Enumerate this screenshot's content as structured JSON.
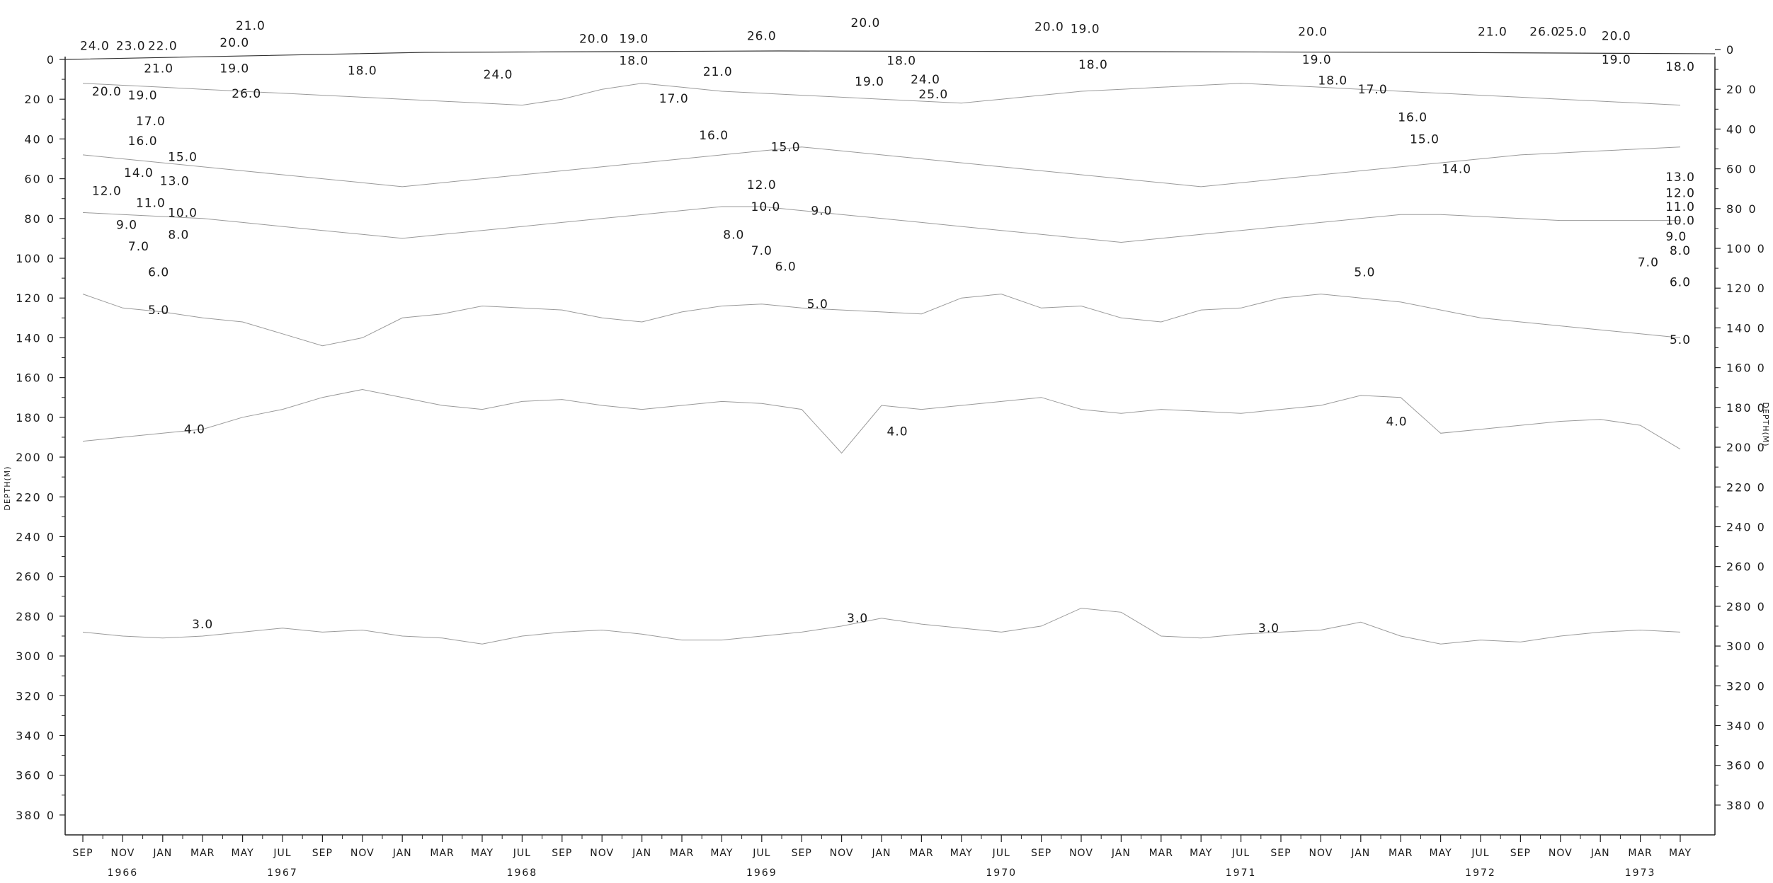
{
  "chart_data": {
    "type": "contour",
    "title": "",
    "ylabel": "DEPTH(M)",
    "xlabel": "",
    "x_range": [
      "1966-09",
      "1973-05"
    ],
    "ylim": [
      0,
      3900
    ],
    "y_reversed": true,
    "y_ticks": [
      0,
      200,
      400,
      600,
      800,
      1000,
      1200,
      1400,
      1600,
      1800,
      2000,
      2200,
      2400,
      2600,
      2800,
      3000,
      3200,
      3400,
      3600,
      3800
    ],
    "y_tick_labels": [
      "0",
      "20 0",
      "40 0",
      "60 0",
      "80 0",
      "100 0",
      "120 0",
      "140 0",
      "160 0",
      "180 0",
      "200 0",
      "220 0",
      "240 0",
      "260 0",
      "280 0",
      "300 0",
      "320 0",
      "340 0",
      "360 0",
      "380 0"
    ],
    "y_tick_labels_right": [
      "0",
      "20 0",
      "40 0",
      "60 0",
      "80 0",
      "100 0",
      "120 0",
      "140 0",
      "160 0",
      "180 0",
      "200 0",
      "220 0",
      "240 0",
      "260 0",
      "280 0",
      "300 0",
      "320 0",
      "340 0",
      "360 0",
      "380 0"
    ],
    "x_months": [
      "SEP",
      "NOV",
      "JAN",
      "MAR",
      "MAY",
      "JUL",
      "SEP",
      "NOV",
      "JAN",
      "MAR",
      "MAY",
      "JUL",
      "SEP",
      "NOV",
      "JAN",
      "MAR",
      "MAY",
      "JUL",
      "SEP",
      "NOV",
      "JAN",
      "MAR",
      "MAY",
      "JUL",
      "SEP",
      "NOV",
      "JAN",
      "MAR",
      "MAY",
      "JUL",
      "SEP",
      "NOV",
      "JAN",
      "MAR",
      "MAY",
      "JUL",
      "SEP",
      "NOV",
      "JAN",
      "MAR",
      "MAY"
    ],
    "year_labels": [
      {
        "text": "1966",
        "month_index": 1
      },
      {
        "text": "1967",
        "month_index": 5
      },
      {
        "text": "1968",
        "month_index": 11
      },
      {
        "text": "1969",
        "month_index": 17
      },
      {
        "text": "1970",
        "month_index": 23
      },
      {
        "text": "1971",
        "month_index": 29
      },
      {
        "text": "1972",
        "month_index": 35
      },
      {
        "text": "1973",
        "month_index": 39
      }
    ],
    "isotherm_labels": [
      {
        "text": "24.0",
        "month": 0.3,
        "depth": -70
      },
      {
        "text": "23.0",
        "month": 1.2,
        "depth": -70
      },
      {
        "text": "22.0",
        "month": 2.0,
        "depth": -70
      },
      {
        "text": "21.0",
        "month": 1.9,
        "depth": 45
      },
      {
        "text": "20.0",
        "month": 0.6,
        "depth": 160
      },
      {
        "text": "19.0",
        "month": 1.5,
        "depth": 180
      },
      {
        "text": "17.0",
        "month": 1.7,
        "depth": 310
      },
      {
        "text": "16.0",
        "month": 1.5,
        "depth": 410
      },
      {
        "text": "15.0",
        "month": 2.5,
        "depth": 490
      },
      {
        "text": "14.0",
        "month": 1.4,
        "depth": 570
      },
      {
        "text": "13.0",
        "month": 2.3,
        "depth": 610
      },
      {
        "text": "12.0",
        "month": 0.6,
        "depth": 660
      },
      {
        "text": "11.0",
        "month": 1.7,
        "depth": 720
      },
      {
        "text": "10.0",
        "month": 2.5,
        "depth": 770
      },
      {
        "text": "9.0",
        "month": 1.1,
        "depth": 830
      },
      {
        "text": "8.0",
        "month": 2.4,
        "depth": 880
      },
      {
        "text": "7.0",
        "month": 1.4,
        "depth": 940
      },
      {
        "text": "6.0",
        "month": 1.9,
        "depth": 1070
      },
      {
        "text": "5.0",
        "month": 1.9,
        "depth": 1260
      },
      {
        "text": "4.0",
        "month": 2.8,
        "depth": 1860
      },
      {
        "text": "3.0",
        "month": 3.0,
        "depth": 2840
      },
      {
        "text": "21.0",
        "month": 4.2,
        "depth": -170
      },
      {
        "text": "20.0",
        "month": 3.8,
        "depth": -85
      },
      {
        "text": "19.0",
        "month": 3.8,
        "depth": 45
      },
      {
        "text": "26.0",
        "month": 4.1,
        "depth": 170
      },
      {
        "text": "18.0",
        "month": 7.0,
        "depth": 55
      },
      {
        "text": "24.0",
        "month": 10.4,
        "depth": 75
      },
      {
        "text": "20.0",
        "month": 12.8,
        "depth": -105
      },
      {
        "text": "19.0",
        "month": 13.8,
        "depth": -105
      },
      {
        "text": "18.0",
        "month": 13.8,
        "depth": 5
      },
      {
        "text": "17.0",
        "month": 14.8,
        "depth": 195
      },
      {
        "text": "21.0",
        "month": 15.9,
        "depth": 60
      },
      {
        "text": "16.0",
        "month": 15.8,
        "depth": 380
      },
      {
        "text": "26.0",
        "month": 17.0,
        "depth": -120
      },
      {
        "text": "20.0",
        "month": 19.6,
        "depth": -185
      },
      {
        "text": "18.0",
        "month": 20.5,
        "depth": 5
      },
      {
        "text": "19.0",
        "month": 19.7,
        "depth": 110
      },
      {
        "text": "15.0",
        "month": 17.6,
        "depth": 440
      },
      {
        "text": "12.0",
        "month": 17.0,
        "depth": 630
      },
      {
        "text": "10.0",
        "month": 17.1,
        "depth": 740
      },
      {
        "text": "9.0",
        "month": 18.5,
        "depth": 760
      },
      {
        "text": "8.0",
        "month": 16.3,
        "depth": 880
      },
      {
        "text": "7.0",
        "month": 17.0,
        "depth": 960
      },
      {
        "text": "6.0",
        "month": 17.6,
        "depth": 1040
      },
      {
        "text": "5.0",
        "month": 18.4,
        "depth": 1230
      },
      {
        "text": "4.0",
        "month": 20.4,
        "depth": 1870
      },
      {
        "text": "3.0",
        "month": 19.4,
        "depth": 2810
      },
      {
        "text": "24.0",
        "month": 21.1,
        "depth": 100
      },
      {
        "text": "25.0",
        "month": 21.3,
        "depth": 175
      },
      {
        "text": "20.0",
        "month": 24.2,
        "depth": -165
      },
      {
        "text": "19.0",
        "month": 25.1,
        "depth": -155
      },
      {
        "text": "18.0",
        "month": 25.3,
        "depth": 25
      },
      {
        "text": "25.0",
        "month": 29.7,
        "depth": -380
      },
      {
        "text": "20.0",
        "month": 30.8,
        "depth": -140
      },
      {
        "text": "19.0",
        "month": 30.9,
        "depth": 0
      },
      {
        "text": "18.0",
        "month": 31.3,
        "depth": 105
      },
      {
        "text": "17.0",
        "month": 32.3,
        "depth": 150
      },
      {
        "text": "16.0",
        "month": 33.3,
        "depth": 290
      },
      {
        "text": "15.0",
        "month": 33.6,
        "depth": 400
      },
      {
        "text": "14.0",
        "month": 34.4,
        "depth": 550
      },
      {
        "text": "5.0",
        "month": 32.1,
        "depth": 1070
      },
      {
        "text": "4.0",
        "month": 32.9,
        "depth": 1820
      },
      {
        "text": "3.0",
        "month": 29.7,
        "depth": 2860
      },
      {
        "text": "21.0",
        "month": 35.3,
        "depth": -140
      },
      {
        "text": "26.0",
        "month": 36.6,
        "depth": -140
      },
      {
        "text": "25.0",
        "month": 37.3,
        "depth": -140
      },
      {
        "text": "20.0",
        "month": 38.4,
        "depth": -120
      },
      {
        "text": "19.0",
        "month": 38.4,
        "depth": 0
      },
      {
        "text": "18.0",
        "month": 40.0,
        "depth": 35
      },
      {
        "text": "13.0",
        "month": 40.0,
        "depth": 590
      },
      {
        "text": "12.0",
        "month": 40.0,
        "depth": 670
      },
      {
        "text": "11.0",
        "month": 40.0,
        "depth": 740
      },
      {
        "text": "10.0",
        "month": 40.0,
        "depth": 810
      },
      {
        "text": "9.0",
        "month": 39.9,
        "depth": 890
      },
      {
        "text": "8.0",
        "month": 40.0,
        "depth": 960
      },
      {
        "text": "7.0",
        "month": 39.2,
        "depth": 1020
      },
      {
        "text": "6.0",
        "month": 40.0,
        "depth": 1120
      },
      {
        "text": "5.0",
        "month": 40.0,
        "depth": 1410
      }
    ],
    "contour_profiles": [
      {
        "level": 5.0,
        "depths": [
          1180,
          1250,
          1270,
          1300,
          1320,
          1380,
          1440,
          1400,
          1300,
          1280,
          1240,
          1250,
          1260,
          1300,
          1320,
          1270,
          1240,
          1230,
          1250,
          1260,
          1270,
          1280,
          1200,
          1180,
          1250,
          1240,
          1300,
          1320,
          1260,
          1250,
          1200,
          1180,
          1200,
          1220,
          1260,
          1300,
          1320,
          1340,
          1360,
          1380,
          1400
        ]
      },
      {
        "level": 4.0,
        "depths": [
          1920,
          1900,
          1880,
          1860,
          1800,
          1760,
          1700,
          1660,
          1700,
          1740,
          1760,
          1720,
          1710,
          1740,
          1760,
          1740,
          1720,
          1730,
          1760,
          1980,
          1740,
          1760,
          1740,
          1720,
          1700,
          1760,
          1780,
          1760,
          1770,
          1780,
          1760,
          1740,
          1690,
          1700,
          1880,
          1860,
          1840,
          1820,
          1810,
          1840,
          1960
        ]
      },
      {
        "level": 3.0,
        "depths": [
          2880,
          2900,
          2910,
          2900,
          2880,
          2860,
          2880,
          2870,
          2900,
          2910,
          2940,
          2900,
          2880,
          2870,
          2890,
          2920,
          2920,
          2900,
          2880,
          2850,
          2810,
          2840,
          2860,
          2880,
          2850,
          2760,
          2780,
          2900,
          2910,
          2890,
          2880,
          2870,
          2830,
          2900,
          2940,
          2920,
          2930,
          2900,
          2880,
          2870,
          2880
        ]
      },
      {
        "level": 19.0,
        "depths": [
          120,
          130,
          140,
          150,
          160,
          170,
          180,
          190,
          200,
          210,
          220,
          230,
          200,
          150,
          120,
          140,
          160,
          170,
          180,
          190,
          200,
          210,
          220,
          200,
          180,
          160,
          150,
          140,
          130,
          120,
          130,
          140,
          150,
          160,
          170,
          180,
          190,
          200,
          210,
          220,
          230
        ]
      },
      {
        "level": 15.0,
        "depths": [
          480,
          500,
          520,
          540,
          560,
          580,
          600,
          620,
          640,
          620,
          600,
          580,
          560,
          540,
          520,
          500,
          480,
          460,
          440,
          460,
          480,
          500,
          520,
          540,
          560,
          580,
          600,
          620,
          640,
          620,
          600,
          580,
          560,
          540,
          520,
          500,
          480,
          470,
          460,
          450,
          440
        ]
      },
      {
        "level": 10.0,
        "depths": [
          770,
          780,
          790,
          800,
          820,
          840,
          860,
          880,
          900,
          880,
          860,
          840,
          820,
          800,
          780,
          760,
          740,
          740,
          760,
          780,
          800,
          820,
          840,
          860,
          880,
          900,
          920,
          900,
          880,
          860,
          840,
          820,
          800,
          780,
          780,
          790,
          800,
          810,
          810,
          810,
          810
        ]
      }
    ]
  }
}
